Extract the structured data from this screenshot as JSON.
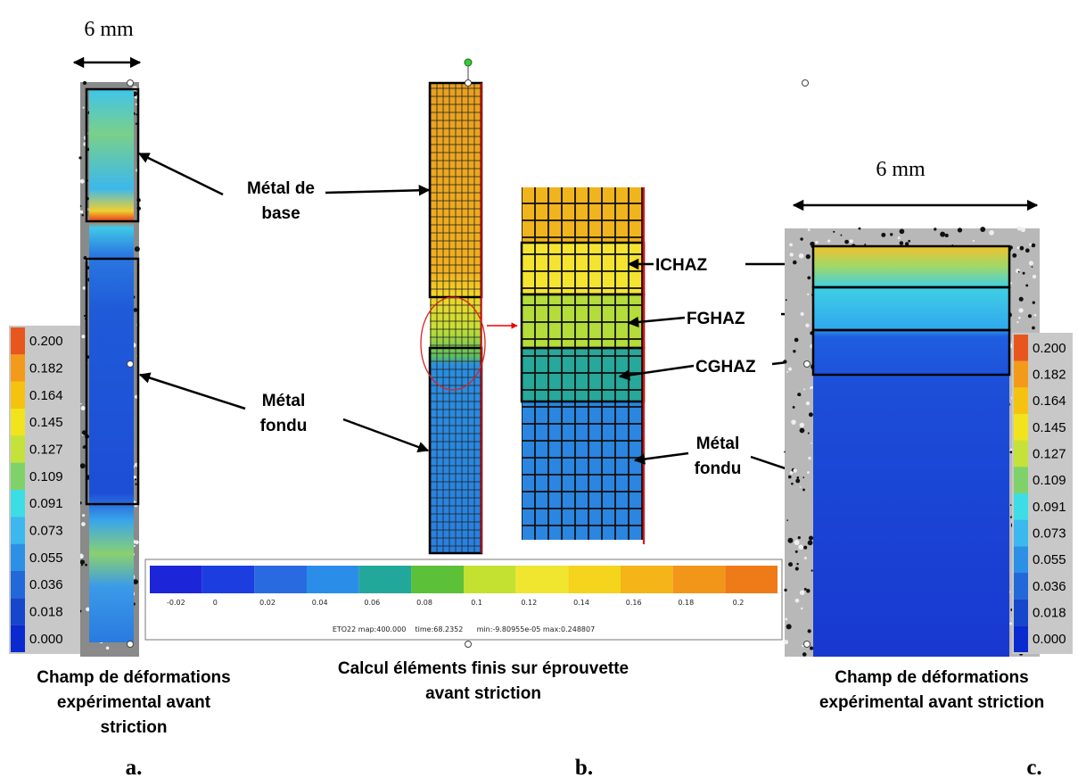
{
  "panel_a": {
    "scale": "6 mm",
    "labels": {
      "base_metal": [
        "Métal de",
        "base"
      ],
      "weld_metal": [
        "Métal",
        "fondu"
      ]
    },
    "colorbar": [
      "0.200",
      "0.182",
      "0.164",
      "0.145",
      "0.127",
      "0.109",
      "0.091",
      "0.073",
      "0.055",
      "0.036",
      "0.018",
      "0.000"
    ],
    "caption": [
      "Champ de déformations",
      "expérimental avant",
      "striction"
    ],
    "letter": "a."
  },
  "panel_b": {
    "colorbar": [
      "-0.02",
      "0",
      "0.02",
      "0.04",
      "0.06",
      "0.08",
      "0.1",
      "0.12",
      "0.14",
      "0.16",
      "0.18",
      "0.2"
    ],
    "colorbar_info": "ETO22 map:400.000    time:68.2352      min:-9.80955e-05 max:0.248807",
    "labels": {
      "ichaz": "ICHAZ",
      "fghaz": "FGHAZ",
      "cghaz": "CGHAZ",
      "weld_metal": [
        "Métal",
        "fondu"
      ]
    },
    "caption": [
      "Calcul éléments finis sur éprouvette",
      "avant striction"
    ],
    "letter": "b."
  },
  "panel_c": {
    "scale": "6 mm",
    "colorbar": [
      "0.200",
      "0.182",
      "0.164",
      "0.145",
      "0.127",
      "0.109",
      "0.091",
      "0.073",
      "0.055",
      "0.036",
      "0.018",
      "0.000"
    ],
    "caption": [
      "Champ de déformations",
      "expérimental avant striction"
    ],
    "letter": "c."
  }
}
